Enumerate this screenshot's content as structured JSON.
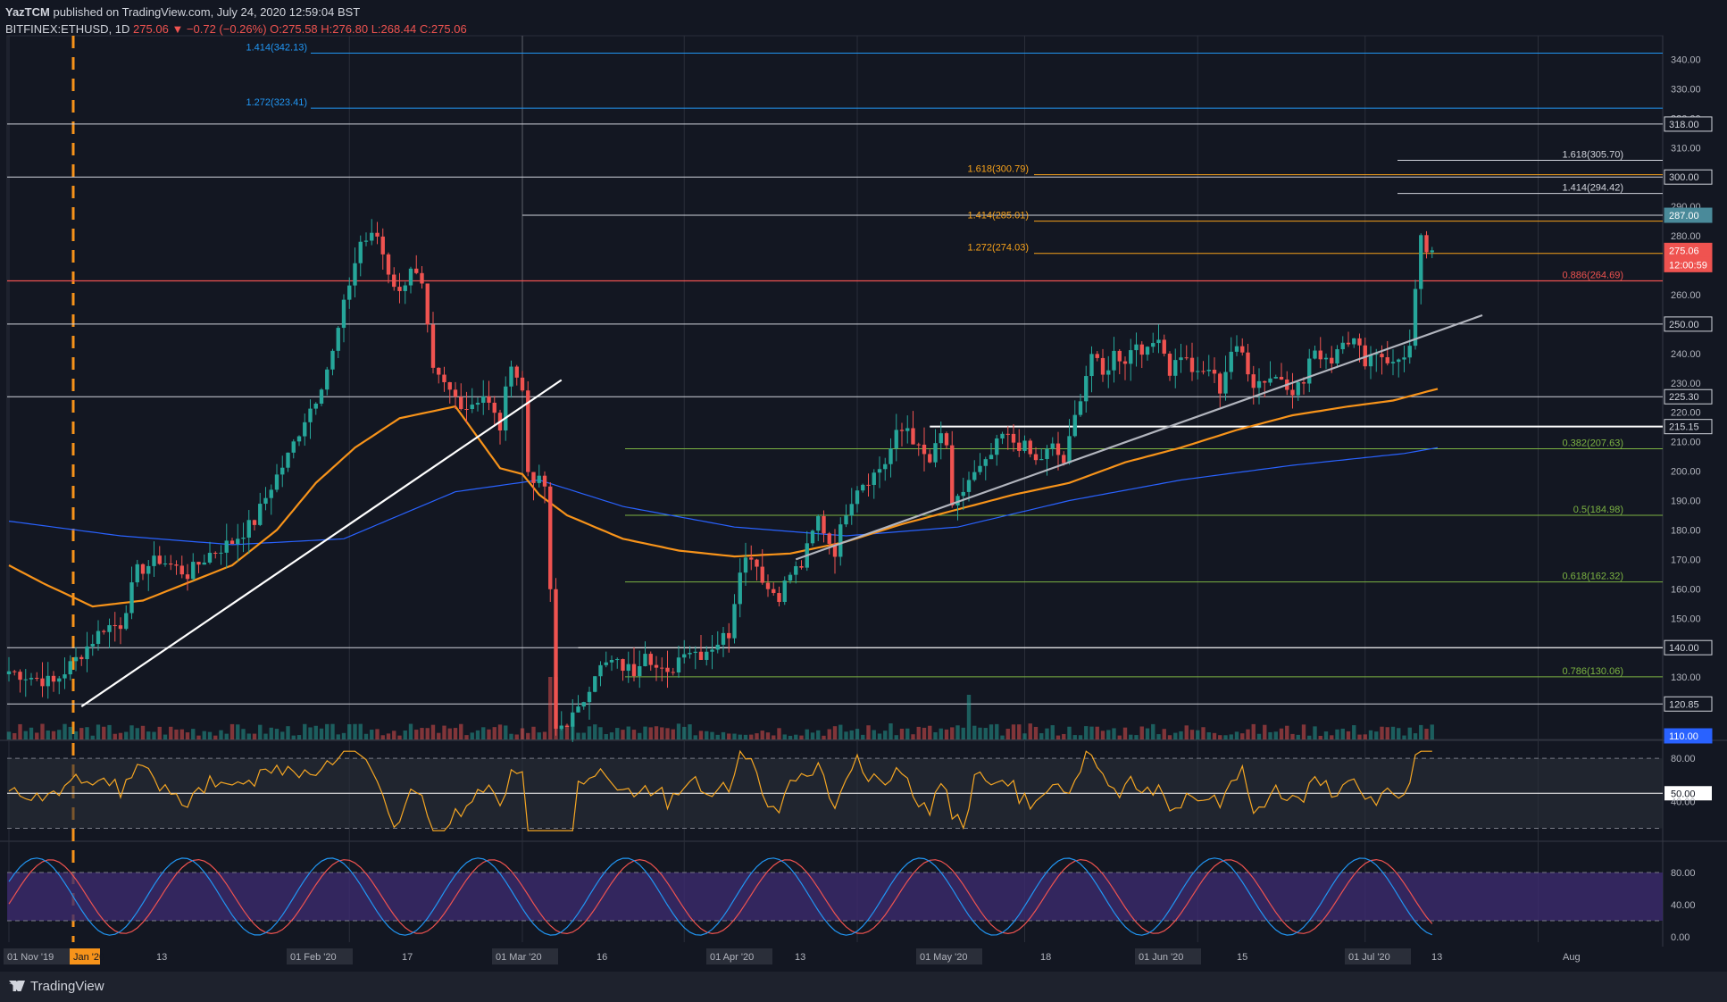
{
  "header": {
    "author": "YazTCM",
    "published": "published on TradingView.com, July 24, 2020 12:59:04 BST",
    "symbol": "BITFINEX:ETHUSD, 1D",
    "last": "275.06",
    "change": "▼ −0.72 (−0.26%)",
    "o": "O:275.58",
    "h": "H:276.80",
    "l": "L:268.44",
    "c": "C:275.06"
  },
  "footer": {
    "brand": "TradingView"
  },
  "colors": {
    "bg": "#131722",
    "up": "#26a69a",
    "down": "#ef5350",
    "ma_orange": "#f7931a",
    "ma_blue": "#2962ff",
    "fib_orange": "#f7a21b",
    "fib_green": "#7cb342",
    "fib_blue": "#2196f3",
    "trend": "#d1d4dc",
    "rsi": "#f5a623",
    "stoch_k": "#2196f3",
    "stoch_d": "#ef5350",
    "stoch_bg": "#3c2a6e"
  },
  "chart_data": {
    "type": "candlestick",
    "title": "BITFINEX:ETHUSD, 1D",
    "ylim": [
      110,
      345
    ],
    "y_ticks": [
      110,
      120,
      130,
      140,
      150,
      160,
      170,
      180,
      190,
      200,
      210,
      220,
      230,
      240,
      250,
      260,
      270,
      280,
      290,
      300,
      310,
      320,
      330,
      340
    ],
    "x_tick_labels": [
      "01 Nov '19",
      "Jan '20",
      "13",
      "01 Feb '20",
      "17",
      "01 Mar '20",
      "16",
      "01 Apr '20",
      "13",
      "01 May '20",
      "18",
      "01 Jun '20",
      "15",
      "01 Jul '20",
      "13",
      "Aug"
    ],
    "price_labels": [
      {
        "text": "318.00",
        "v": 318,
        "style": "white"
      },
      {
        "text": "300.00",
        "v": 300,
        "style": "white"
      },
      {
        "text": "287.00",
        "v": 287,
        "style": "teal"
      },
      {
        "text": "275.06",
        "v": 275.06,
        "style": "red"
      },
      {
        "text": "12:00:59",
        "v": 270.2,
        "style": "red"
      },
      {
        "text": "250.00",
        "v": 250,
        "style": "white"
      },
      {
        "text": "225.30",
        "v": 225.3,
        "style": "white"
      },
      {
        "text": "215.15",
        "v": 215.15,
        "style": "white"
      },
      {
        "text": "140.00",
        "v": 140,
        "style": "white"
      },
      {
        "text": "120.85",
        "v": 120.85,
        "style": "white"
      },
      {
        "text": "110.00",
        "v": 110,
        "style": "blue"
      }
    ],
    "horizontal_levels": [
      {
        "v": 318,
        "color": "#d1d4dc"
      },
      {
        "v": 300,
        "color": "#d1d4dc"
      },
      {
        "v": 287,
        "color": "#d1d4dc"
      },
      {
        "v": 250,
        "color": "#d1d4dc"
      },
      {
        "v": 225.3,
        "color": "#d1d4dc"
      },
      {
        "v": 140,
        "color": "#d1d4dc"
      },
      {
        "v": 120.85,
        "color": "#d1d4dc"
      },
      {
        "v": 264.69,
        "color": "#ef5350"
      }
    ],
    "fib_levels": [
      {
        "label": "1.414(342.13)",
        "v": 342.13,
        "color": "#2196f3",
        "side": "left"
      },
      {
        "label": "1.272(323.41)",
        "v": 323.41,
        "color": "#2196f3",
        "side": "left"
      },
      {
        "label": "1.618(305.70)",
        "v": 305.7,
        "color": "#d1d4dc",
        "side": "right"
      },
      {
        "label": "1.618(300.79)",
        "v": 300.79,
        "color": "#f7a21b",
        "side": "mid"
      },
      {
        "label": "1.414(294.42)",
        "v": 294.42,
        "color": "#d1d4dc",
        "side": "right"
      },
      {
        "label": "1.414(285.01)",
        "v": 285.01,
        "color": "#f7a21b",
        "side": "mid"
      },
      {
        "label": "1.272(274.03)",
        "v": 274.03,
        "color": "#f7a21b",
        "side": "mid"
      },
      {
        "label": "0.886(264.69)",
        "v": 264.69,
        "color": "#ef5350",
        "side": "right"
      },
      {
        "label": "0.382(207.63)",
        "v": 207.63,
        "color": "#7cb342",
        "side": "right"
      },
      {
        "label": "0.5(184.98)",
        "v": 184.98,
        "color": "#7cb342",
        "side": "right"
      },
      {
        "label": "0.618(162.32)",
        "v": 162.32,
        "color": "#7cb342",
        "side": "right"
      },
      {
        "label": "0.786(130.06)",
        "v": 130.06,
        "color": "#7cb342",
        "side": "right"
      }
    ],
    "anchor_closes": [
      [
        0,
        132
      ],
      [
        8,
        128
      ],
      [
        12,
        136
      ],
      [
        17,
        147
      ],
      [
        20,
        148
      ],
      [
        23,
        166
      ],
      [
        27,
        170
      ],
      [
        32,
        165
      ],
      [
        36,
        172
      ],
      [
        40,
        176
      ],
      [
        44,
        183
      ],
      [
        47,
        195
      ],
      [
        50,
        205
      ],
      [
        53,
        218
      ],
      [
        55,
        225
      ],
      [
        58,
        240
      ],
      [
        61,
        264
      ],
      [
        63,
        278
      ],
      [
        66,
        280
      ],
      [
        68,
        268
      ],
      [
        70,
        260
      ],
      [
        72,
        270
      ],
      [
        74,
        262
      ],
      [
        76,
        233
      ],
      [
        80,
        225
      ],
      [
        82,
        222
      ],
      [
        85,
        226
      ],
      [
        88,
        215
      ],
      [
        90,
        238
      ],
      [
        92,
        227
      ],
      [
        93,
        200
      ],
      [
        95,
        196
      ],
      [
        96,
        195
      ],
      [
        97,
        158
      ],
      [
        98,
        112
      ],
      [
        102,
        118
      ],
      [
        105,
        132
      ],
      [
        108,
        135
      ],
      [
        112,
        132
      ],
      [
        114,
        140
      ],
      [
        116,
        133
      ],
      [
        118,
        130
      ],
      [
        121,
        140
      ],
      [
        124,
        138
      ],
      [
        127,
        142
      ],
      [
        129,
        145
      ],
      [
        131,
        168
      ],
      [
        133,
        172
      ],
      [
        136,
        160
      ],
      [
        138,
        158
      ],
      [
        140,
        165
      ],
      [
        142,
        168
      ],
      [
        145,
        184
      ],
      [
        147,
        176
      ],
      [
        148,
        173
      ],
      [
        150,
        187
      ],
      [
        152,
        195
      ],
      [
        155,
        199
      ],
      [
        157,
        203
      ],
      [
        159,
        212
      ],
      [
        161,
        215
      ],
      [
        163,
        207
      ],
      [
        165,
        203
      ],
      [
        167,
        212
      ],
      [
        168,
        209
      ],
      [
        169,
        186
      ],
      [
        172,
        197
      ],
      [
        175,
        202
      ],
      [
        178,
        212
      ],
      [
        180,
        210
      ],
      [
        182,
        208
      ],
      [
        184,
        203
      ],
      [
        187,
        208
      ],
      [
        189,
        203
      ],
      [
        190,
        210
      ],
      [
        192,
        226
      ],
      [
        194,
        240
      ],
      [
        196,
        232
      ],
      [
        198,
        240
      ],
      [
        200,
        238
      ],
      [
        202,
        244
      ],
      [
        204,
        240
      ],
      [
        206,
        247
      ],
      [
        208,
        234
      ],
      [
        210,
        240
      ],
      [
        213,
        232
      ],
      [
        215,
        235
      ],
      [
        217,
        228
      ],
      [
        219,
        241
      ],
      [
        221,
        240
      ],
      [
        223,
        230
      ],
      [
        226,
        232
      ],
      [
        228,
        232
      ],
      [
        230,
        228
      ],
      [
        232,
        230
      ],
      [
        233,
        238
      ],
      [
        235,
        240
      ],
      [
        237,
        238
      ],
      [
        239,
        246
      ],
      [
        241,
        244
      ],
      [
        243,
        238
      ],
      [
        245,
        241
      ],
      [
        247,
        238
      ],
      [
        248,
        236
      ],
      [
        250,
        240
      ],
      [
        251,
        242
      ],
      [
        253,
        278
      ],
      [
        254,
        275
      ],
      [
        255,
        275.06
      ]
    ],
    "ma_orange_anchors": [
      [
        0,
        168
      ],
      [
        6,
        162
      ],
      [
        15,
        154
      ],
      [
        24,
        156
      ],
      [
        32,
        162
      ],
      [
        40,
        168
      ],
      [
        48,
        180
      ],
      [
        55,
        196
      ],
      [
        62,
        208
      ],
      [
        70,
        218
      ],
      [
        80,
        222
      ],
      [
        88,
        201
      ],
      [
        92,
        199
      ],
      [
        95,
        192
      ],
      [
        100,
        185
      ],
      [
        110,
        177
      ],
      [
        120,
        173
      ],
      [
        130,
        171
      ],
      [
        140,
        172
      ],
      [
        150,
        176
      ],
      [
        160,
        182
      ],
      [
        170,
        187
      ],
      [
        180,
        192
      ],
      [
        190,
        196
      ],
      [
        200,
        203
      ],
      [
        210,
        208
      ],
      [
        220,
        214
      ],
      [
        230,
        219
      ],
      [
        240,
        222
      ],
      [
        248,
        224
      ],
      [
        256,
        228
      ]
    ],
    "ma_blue_anchors": [
      [
        0,
        183
      ],
      [
        20,
        178
      ],
      [
        40,
        175
      ],
      [
        60,
        177
      ],
      [
        80,
        193
      ],
      [
        95,
        197
      ],
      [
        110,
        188
      ],
      [
        130,
        181
      ],
      [
        150,
        178
      ],
      [
        170,
        181
      ],
      [
        190,
        190
      ],
      [
        210,
        197
      ],
      [
        230,
        202
      ],
      [
        250,
        206
      ],
      [
        256,
        208
      ]
    ],
    "trendlines": [
      {
        "from": [
          13,
          120
        ],
        "to": [
          99,
          231
        ],
        "color": "#ffffff"
      },
      {
        "from": [
          141,
          170
        ],
        "to": [
          264,
          253
        ],
        "color": "#b2b5be"
      }
    ],
    "rsi": {
      "ylim": [
        15,
        90
      ],
      "levels": [
        80,
        50,
        40
      ],
      "ticks": [
        "80.00",
        "50.00",
        "40.00"
      ]
    },
    "stoch": {
      "ylim": [
        0,
        100
      ],
      "band": [
        20,
        80
      ],
      "ticks": [
        "80.00",
        "40.00",
        "0.00"
      ]
    }
  }
}
